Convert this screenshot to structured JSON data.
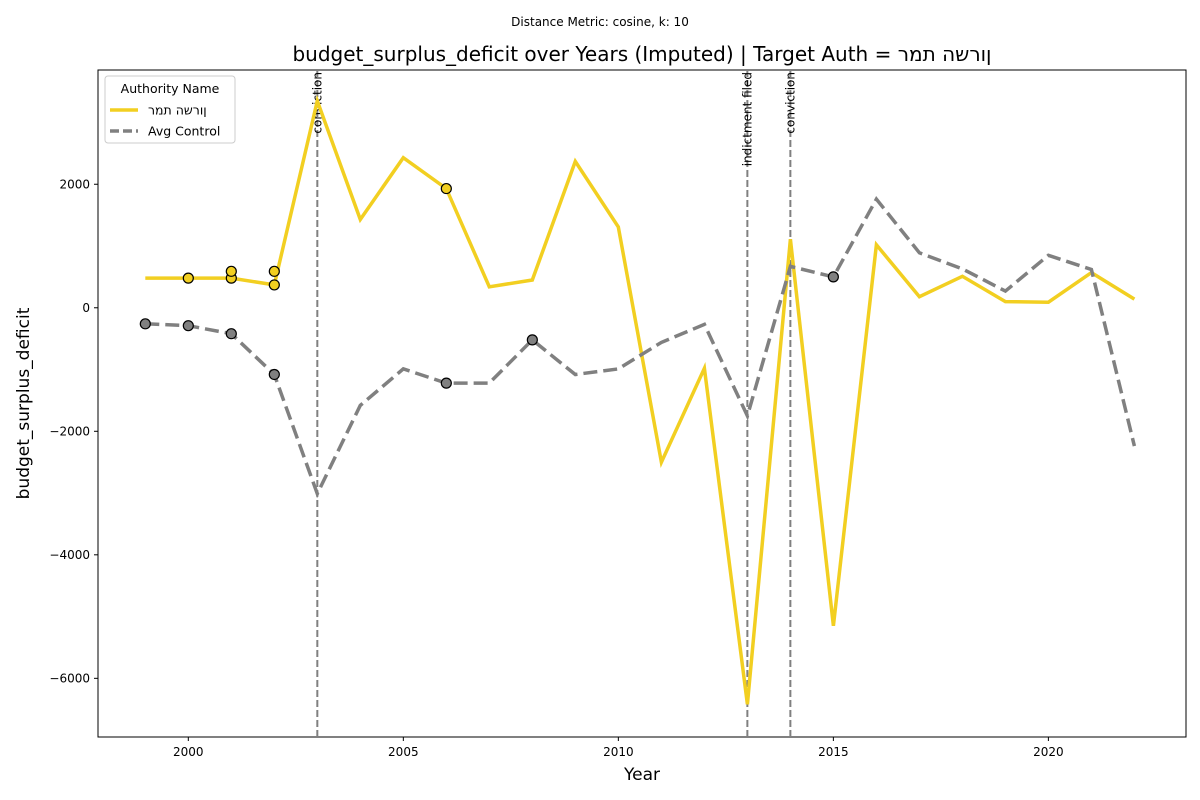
{
  "chart_data": {
    "type": "line",
    "suptitle": "Distance Metric: cosine, k: 10",
    "title": "budget_surplus_deficit over Years (Imputed) | Target Auth = ןורשה תמר",
    "xlabel": "Year",
    "ylabel": "budget_surplus_deficit",
    "xlim": [
      1997.9,
      2023.2
    ],
    "ylim": [
      -6950,
      3850
    ],
    "xticks": [
      2000,
      2005,
      2010,
      2015,
      2020
    ],
    "yticks": [
      -6000,
      -4000,
      -2000,
      0,
      2000
    ],
    "ytick_labels": [
      "−6000",
      "−4000",
      "−2000",
      "0",
      "2000"
    ],
    "x": [
      1999,
      2000,
      2001,
      2002,
      2003,
      2004,
      2005,
      2006,
      2007,
      2008,
      2009,
      2010,
      2011,
      2012,
      2013,
      2014,
      2015,
      2016,
      2017,
      2018,
      2019,
      2020,
      2021,
      2022
    ],
    "series": [
      {
        "name": "ןורשה תמר",
        "color": "#f2cf21",
        "style": "solid",
        "values": [
          480,
          480,
          480,
          370,
          3350,
          1430,
          2430,
          1930,
          340,
          450,
          2370,
          1310,
          -2500,
          -980,
          -6420,
          1110,
          -5150,
          1020,
          180,
          510,
          100,
          90,
          570,
          140
        ],
        "imputed_points": [
          {
            "x": 2000,
            "y": 480
          },
          {
            "x": 2001,
            "y": 480
          },
          {
            "x": 2001,
            "y": 590
          },
          {
            "x": 2002,
            "y": 370
          },
          {
            "x": 2002,
            "y": 590
          },
          {
            "x": 2006,
            "y": 1930
          }
        ]
      },
      {
        "name": "Avg Control",
        "color": "#808080",
        "style": "dashed",
        "values": [
          -260,
          -290,
          -420,
          -1080,
          -3010,
          -1580,
          -990,
          -1220,
          -1220,
          -520,
          -1080,
          -990,
          -560,
          -270,
          -1750,
          670,
          500,
          1760,
          890,
          630,
          270,
          850,
          620,
          -2240
        ],
        "imputed_points": [
          {
            "x": 1999,
            "y": -260
          },
          {
            "x": 2000,
            "y": -290
          },
          {
            "x": 2001,
            "y": -420
          },
          {
            "x": 2002,
            "y": -1080
          },
          {
            "x": 2006,
            "y": -1220
          },
          {
            "x": 2008,
            "y": -520
          },
          {
            "x": 2015,
            "y": 500
          }
        ]
      }
    ],
    "events": [
      {
        "x": 2003,
        "label": "conviction"
      },
      {
        "x": 2013,
        "label": "indictment filed"
      },
      {
        "x": 2014,
        "label": "conviction"
      }
    ],
    "legend": {
      "title": "Authority Name",
      "placement": "top-left",
      "entries": [
        "ןורשה תמר",
        "Avg Control"
      ]
    },
    "grid": false
  }
}
